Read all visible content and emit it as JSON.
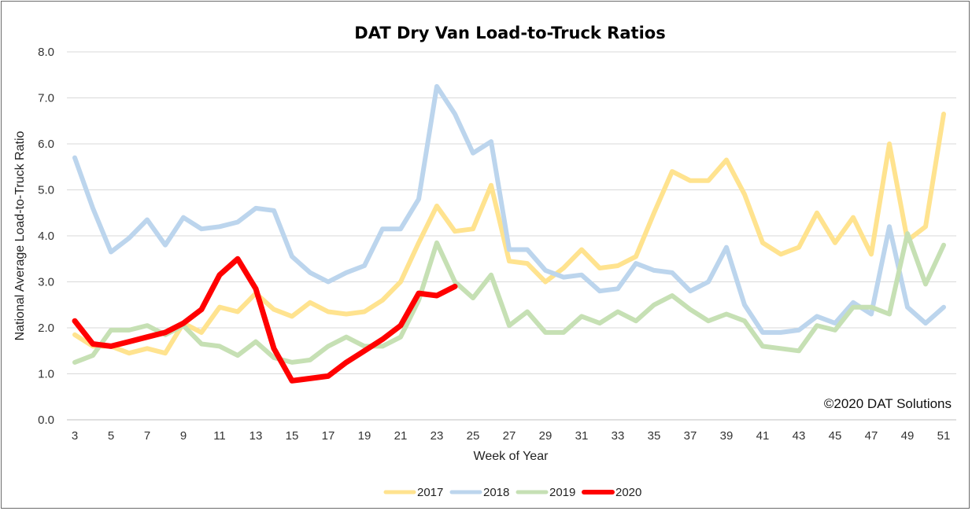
{
  "chart_data": {
    "type": "line",
    "title": "DAT Dry Van Load-to-Truck Ratios",
    "xlabel": "Week of Year",
    "ylabel": "National Average Load-to-Truck Ratio",
    "ylim": [
      0,
      8
    ],
    "yticks": [
      "0.0",
      "1.0",
      "2.0",
      "3.0",
      "4.0",
      "5.0",
      "6.0",
      "7.0",
      "8.0"
    ],
    "xlim": [
      3,
      51
    ],
    "xticks": [
      "3",
      "5",
      "7",
      "9",
      "11",
      "13",
      "15",
      "17",
      "19",
      "21",
      "23",
      "25",
      "27",
      "29",
      "31",
      "33",
      "35",
      "37",
      "39",
      "41",
      "43",
      "45",
      "47",
      "49",
      "51"
    ],
    "grid": true,
    "legend_position": "bottom",
    "annotation": "©2020 DAT Solutions",
    "series": [
      {
        "name": "2017",
        "color": "#ffe38f",
        "x": [
          3,
          4,
          5,
          6,
          7,
          8,
          9,
          10,
          11,
          12,
          13,
          14,
          15,
          16,
          17,
          18,
          19,
          20,
          21,
          22,
          23,
          24,
          25,
          26,
          27,
          28,
          29,
          30,
          31,
          32,
          33,
          34,
          35,
          36,
          37,
          38,
          39,
          40,
          41,
          42,
          43,
          44,
          45,
          46,
          47,
          48,
          49,
          50,
          51
        ],
        "y": [
          1.85,
          1.6,
          1.6,
          1.45,
          1.55,
          1.45,
          2.1,
          1.9,
          2.45,
          2.35,
          2.75,
          2.4,
          2.25,
          2.55,
          2.35,
          2.3,
          2.35,
          2.6,
          3.0,
          3.85,
          4.65,
          4.1,
          4.15,
          5.1,
          3.45,
          3.4,
          3.0,
          3.3,
          3.7,
          3.3,
          3.35,
          3.55,
          4.5,
          5.4,
          5.2,
          5.2,
          5.65,
          4.9,
          3.85,
          3.6,
          3.75,
          4.5,
          3.85,
          4.4,
          3.6,
          6.0,
          3.9,
          4.2,
          6.65
        ]
      },
      {
        "name": "2018",
        "color": "#bcd5ed",
        "x": [
          3,
          4,
          5,
          6,
          7,
          8,
          9,
          10,
          11,
          12,
          13,
          14,
          15,
          16,
          17,
          18,
          19,
          20,
          21,
          22,
          23,
          24,
          25,
          26,
          27,
          28,
          29,
          30,
          31,
          32,
          33,
          34,
          35,
          36,
          37,
          38,
          39,
          40,
          41,
          42,
          43,
          44,
          45,
          46,
          47,
          48,
          49,
          50,
          51
        ],
        "y": [
          5.7,
          4.6,
          3.65,
          3.95,
          4.35,
          3.8,
          4.4,
          4.15,
          4.2,
          4.3,
          4.6,
          4.55,
          3.55,
          3.2,
          3.0,
          3.2,
          3.35,
          4.15,
          4.15,
          4.8,
          7.25,
          6.65,
          5.8,
          6.05,
          3.7,
          3.7,
          3.25,
          3.1,
          3.15,
          2.8,
          2.85,
          3.4,
          3.25,
          3.2,
          2.8,
          3.0,
          3.75,
          2.5,
          1.9,
          1.9,
          1.95,
          2.25,
          2.1,
          2.55,
          2.3,
          4.2,
          2.45,
          2.1,
          2.45
        ]
      },
      {
        "name": "2019",
        "color": "#c6e0b4",
        "x": [
          3,
          4,
          5,
          6,
          7,
          8,
          9,
          10,
          11,
          12,
          13,
          14,
          15,
          16,
          17,
          18,
          19,
          20,
          21,
          22,
          23,
          24,
          25,
          26,
          27,
          28,
          29,
          30,
          31,
          32,
          33,
          34,
          35,
          36,
          37,
          38,
          39,
          40,
          41,
          42,
          43,
          44,
          45,
          46,
          47,
          48,
          49,
          50,
          51
        ],
        "y": [
          1.25,
          1.4,
          1.95,
          1.95,
          2.05,
          1.85,
          2.05,
          1.65,
          1.6,
          1.4,
          1.7,
          1.35,
          1.25,
          1.3,
          1.6,
          1.8,
          1.6,
          1.6,
          1.8,
          2.6,
          3.85,
          3.0,
          2.65,
          3.15,
          2.05,
          2.35,
          1.9,
          1.9,
          2.25,
          2.1,
          2.35,
          2.15,
          2.5,
          2.7,
          2.4,
          2.15,
          2.3,
          2.15,
          1.6,
          1.55,
          1.5,
          2.05,
          1.95,
          2.45,
          2.45,
          2.3,
          4.05,
          2.95,
          3.8
        ]
      },
      {
        "name": "2020",
        "color": "#ff0000",
        "x": [
          3,
          4,
          5,
          6,
          7,
          8,
          9,
          10,
          11,
          12,
          13,
          14,
          15,
          16,
          17,
          18,
          19,
          20,
          21,
          22,
          23,
          24
        ],
        "y": [
          2.15,
          1.65,
          1.6,
          1.7,
          1.8,
          1.9,
          2.1,
          2.4,
          3.15,
          3.5,
          2.85,
          1.55,
          0.85,
          0.9,
          0.95,
          1.25,
          1.5,
          1.75,
          2.05,
          2.75,
          2.7,
          2.9
        ]
      }
    ]
  }
}
